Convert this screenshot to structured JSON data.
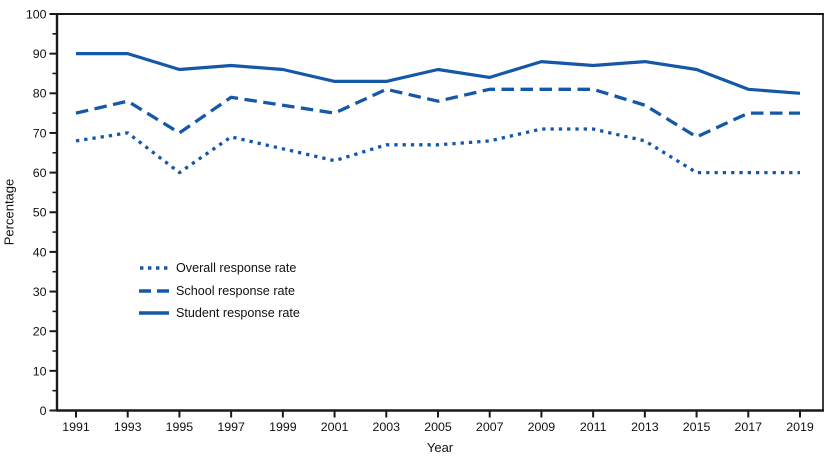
{
  "chart_data": {
    "type": "line",
    "title": "",
    "xlabel": "Year",
    "ylabel": "Percentage",
    "categories": [
      "1991",
      "1993",
      "1995",
      "1997",
      "1999",
      "2001",
      "2003",
      "2005",
      "2007",
      "2009",
      "2011",
      "2013",
      "2015",
      "2017",
      "2019"
    ],
    "y_ticks": [
      0,
      10,
      20,
      30,
      40,
      50,
      60,
      70,
      80,
      90,
      100
    ],
    "ylim": [
      0,
      100
    ],
    "grid": false,
    "legend_position": "inside-left-middle",
    "line_color": "#1458A7",
    "axis_color": "#1a1a1a",
    "series": [
      {
        "name": "Overall response rate",
        "style": "dotted",
        "values": [
          68,
          70,
          60,
          69,
          66,
          63,
          67,
          67,
          68,
          71,
          71,
          68,
          60,
          60,
          60
        ]
      },
      {
        "name": "School response rate",
        "style": "dashed",
        "values": [
          75,
          78,
          70,
          79,
          77,
          75,
          81,
          78,
          81,
          81,
          81,
          77,
          69,
          75,
          75
        ]
      },
      {
        "name": "Student response rate",
        "style": "solid",
        "values": [
          90,
          90,
          86,
          87,
          86,
          83,
          83,
          86,
          84,
          88,
          87,
          88,
          86,
          81,
          80
        ]
      }
    ]
  }
}
